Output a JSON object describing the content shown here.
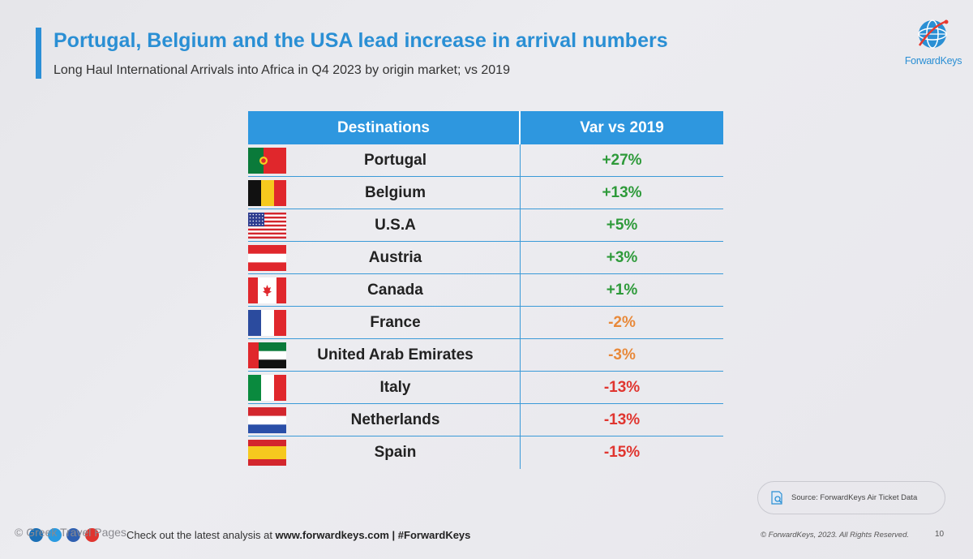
{
  "header": {
    "title": "Portugal, Belgium and the USA lead increase in arrival numbers",
    "subtitle": "Long Haul International Arrivals into Africa in Q4 2023 by origin market; vs 2019"
  },
  "logo": {
    "text": "ForwardKeys",
    "icon": "globe-icon",
    "color": "#2a8fd4"
  },
  "table": {
    "headers": [
      "Destinations",
      "Var vs 2019"
    ],
    "header_color": "#2e97df",
    "rows": [
      {
        "flag": "portugal-flag-icon",
        "name": "Portugal",
        "var": "+27%",
        "trend": "positive"
      },
      {
        "flag": "belgium-flag-icon",
        "name": "Belgium",
        "var": "+13%",
        "trend": "positive"
      },
      {
        "flag": "usa-flag-icon",
        "name": "U.S.A",
        "var": "+5%",
        "trend": "positive"
      },
      {
        "flag": "austria-flag-icon",
        "name": "Austria",
        "var": "+3%",
        "trend": "positive"
      },
      {
        "flag": "canada-flag-icon",
        "name": "Canada",
        "var": "+1%",
        "trend": "positive"
      },
      {
        "flag": "france-flag-icon",
        "name": "France",
        "var": "-2%",
        "trend": "slight-negative"
      },
      {
        "flag": "uae-flag-icon",
        "name": "United Arab Emirates",
        "var": "-3%",
        "trend": "slight-negative"
      },
      {
        "flag": "italy-flag-icon",
        "name": "Italy",
        "var": "-13%",
        "trend": "negative"
      },
      {
        "flag": "netherlands-flag-icon",
        "name": "Netherlands",
        "var": "-13%",
        "trend": "negative"
      },
      {
        "flag": "spain-flag-icon",
        "name": "Spain",
        "var": "-15%",
        "trend": "negative"
      }
    ],
    "colors": {
      "positive": "#2e9a3a",
      "slight-negative": "#e8893a",
      "negative": "#e0352f"
    }
  },
  "source": {
    "icon": "document-search-icon",
    "text": "Source: ForwardKeys Air Ticket Data"
  },
  "footer": {
    "watermark": "© Greek Travel Pages",
    "cta_prefix": "Check out the latest analysis at ",
    "cta_link": "www.forwardkeys.com | #ForwardKeys",
    "copyright": "© ForwardKeys, 2023. All Rights Reserved.",
    "page_number": "10"
  }
}
